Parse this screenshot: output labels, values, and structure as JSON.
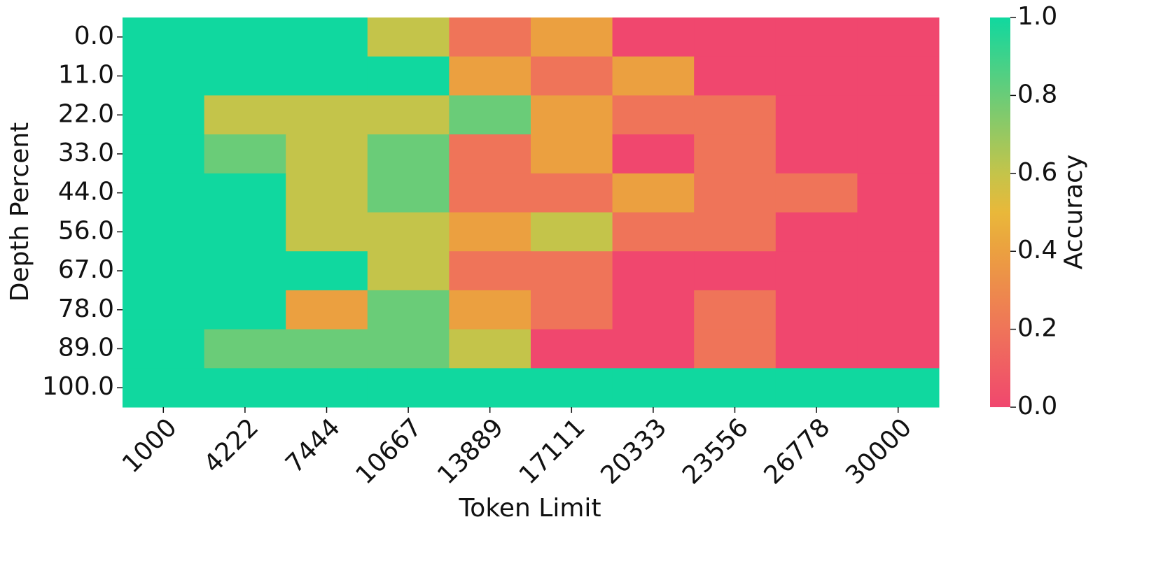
{
  "chart_data": {
    "type": "heatmap",
    "x_label": "Token Limit",
    "y_label": "Depth Percent",
    "colorbar_label": "Accuracy",
    "categories": [
      "1000",
      "4222",
      "7444",
      "10667",
      "13889",
      "17111",
      "20333",
      "23556",
      "26778",
      "30000"
    ],
    "y_categories": [
      "0.0",
      "11.0",
      "22.0",
      "33.0",
      "44.0",
      "56.0",
      "67.0",
      "78.0",
      "89.0",
      "100.0"
    ],
    "values": [
      [
        1,
        1,
        1,
        0.6,
        0.2,
        0.4,
        0,
        0,
        0,
        0
      ],
      [
        1,
        1,
        1,
        1,
        0.4,
        0.2,
        0.4,
        0,
        0,
        0
      ],
      [
        1,
        0.6,
        0.6,
        0.6,
        0.8,
        0.4,
        0.2,
        0.2,
        0,
        0
      ],
      [
        1,
        0.8,
        0.6,
        0.8,
        0.2,
        0.4,
        0,
        0.2,
        0,
        0
      ],
      [
        1,
        1,
        0.6,
        0.8,
        0.2,
        0.2,
        0.4,
        0.2,
        0.2,
        0
      ],
      [
        1,
        1,
        0.6,
        0.6,
        0.4,
        0.6,
        0.2,
        0.2,
        0,
        0
      ],
      [
        1,
        1,
        1,
        0.6,
        0.2,
        0.2,
        0,
        0,
        0,
        0
      ],
      [
        1,
        1,
        0.4,
        0.8,
        0.4,
        0.2,
        0,
        0.2,
        0,
        0
      ],
      [
        1,
        0.8,
        0.8,
        0.8,
        0.6,
        0,
        0,
        0.2,
        0,
        0
      ],
      [
        1,
        1,
        1,
        1,
        1,
        1,
        1,
        1,
        1,
        1
      ]
    ],
    "colorscale": [
      [
        0,
        "#f0476e"
      ],
      [
        0.2,
        "#ef7459"
      ],
      [
        0.4,
        "#eba040"
      ],
      [
        0.5,
        "#e9b83a"
      ],
      [
        0.6,
        "#c4c44a"
      ],
      [
        0.8,
        "#6acc78"
      ],
      [
        1,
        "#10d89f"
      ]
    ],
    "clim": [
      0,
      1
    ],
    "cticks": [
      {
        "value": 0,
        "label": "0.0"
      },
      0.2,
      0.4,
      0.6,
      0.8,
      {
        "value": 1,
        "label": "1.0"
      }
    ]
  }
}
